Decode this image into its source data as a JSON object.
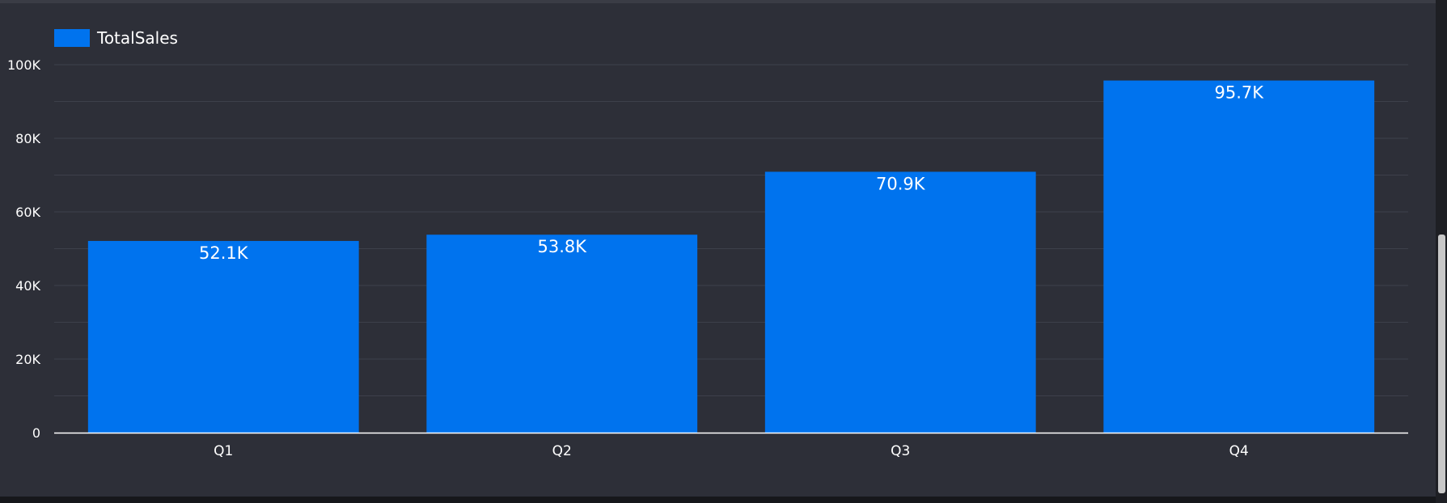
{
  "chart_data": {
    "type": "bar",
    "categories": [
      "Q1",
      "Q2",
      "Q3",
      "Q4"
    ],
    "series": [
      {
        "name": "TotalSales",
        "values": [
          52100,
          53800,
          70900,
          95700
        ],
        "labels": [
          "52.1K",
          "53.8K",
          "70.9K",
          "95.7K"
        ],
        "color": "#0073ee"
      }
    ],
    "ylim": [
      0,
      100000
    ],
    "yticks": [
      0,
      20000,
      40000,
      60000,
      80000,
      100000
    ],
    "ytick_labels": [
      "0",
      "20K",
      "40K",
      "60K",
      "80K",
      "100K"
    ],
    "grid": true,
    "legend_position": "top-left"
  },
  "theme": {
    "panel_bg": "#2d2f38",
    "grid_color": "#3d404b",
    "axis_color": "#ffffff",
    "text_color": "#ffffff"
  }
}
